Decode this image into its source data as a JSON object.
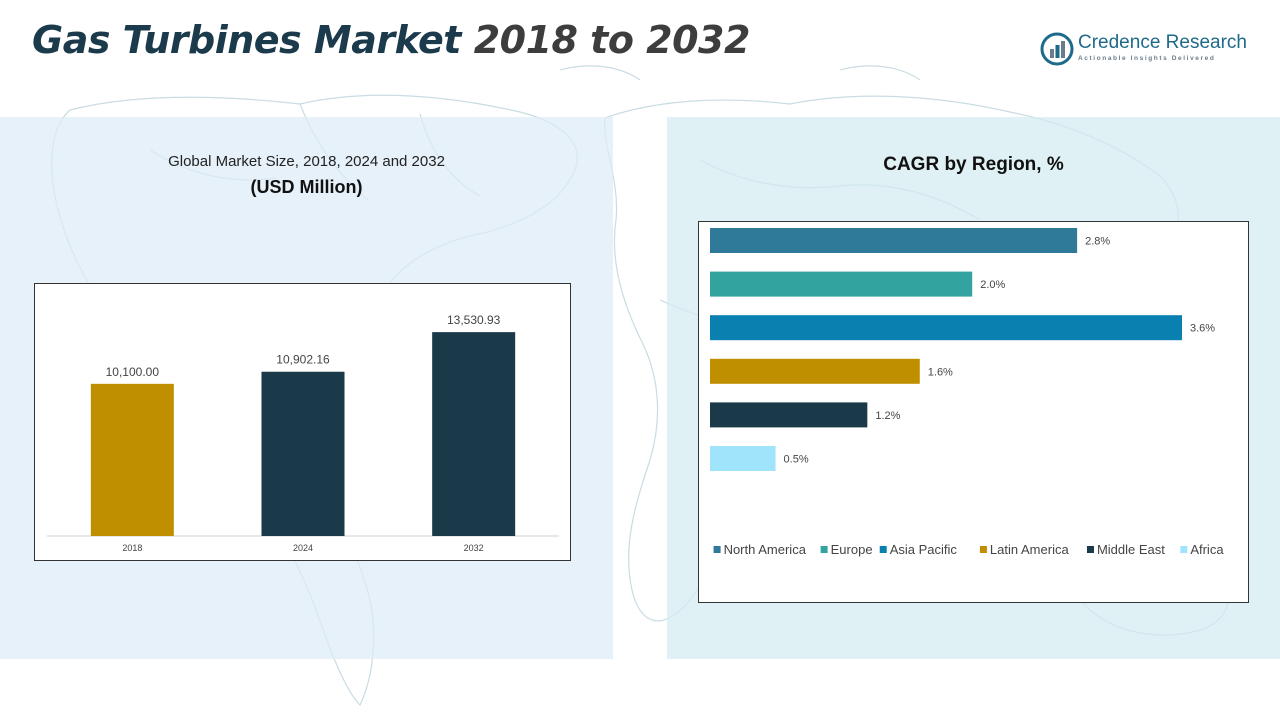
{
  "header": {
    "title_part1": "Gas Turbines Market",
    "title_part2": "2018 to 2032",
    "logo_name": "Credence Research",
    "logo_tagline": "Actionable Insights Delivered"
  },
  "left_panel": {
    "subtitle": "Global Market Size, 2018, 2024 and 2032",
    "unit": "(USD Million)"
  },
  "right_panel": {
    "title": "CAGR by Region, %"
  },
  "colors": {
    "title_dark": "#1b3a4b",
    "gold": "#bf8f00",
    "navy": "#1a3a4a",
    "north_america": "#2e7a98",
    "europe": "#33a3a0",
    "asia_pacific": "#0a80b0",
    "latin_america": "#bf8f00",
    "middle_east": "#1a3a4a",
    "africa": "#9fe4fb"
  },
  "chart_data": [
    {
      "type": "bar",
      "categories": [
        "2018",
        "2024",
        "2032"
      ],
      "values": [
        10100.0,
        10902.16,
        13530.93
      ],
      "value_labels": [
        "10,100.00",
        "10,902.16",
        "13,530.93"
      ],
      "bar_colors": [
        "#bf8f00",
        "#1a3a4a",
        "#1a3a4a"
      ],
      "title": "Global Market Size, 2018, 2024 and 2032",
      "ylabel": "(USD Million)",
      "ylim": [
        0,
        15000
      ],
      "grid": false
    },
    {
      "type": "bar",
      "orientation": "horizontal",
      "title": "CAGR by Region, %",
      "series": [
        {
          "name": "North America",
          "value": 2.8,
          "label": "2.8%",
          "color": "#2e7a98"
        },
        {
          "name": "Europe",
          "value": 2.0,
          "label": "2.0%",
          "color": "#33a3a0"
        },
        {
          "name": "Asia Pacific",
          "value": 3.6,
          "label": "3.6%",
          "color": "#0a80b0"
        },
        {
          "name": "Latin America",
          "value": 1.6,
          "label": "1.6%",
          "color": "#bf8f00"
        },
        {
          "name": "Middle East",
          "value": 1.2,
          "label": "1.2%",
          "color": "#1a3a4a"
        },
        {
          "name": "Africa",
          "value": 0.5,
          "label": "0.5%",
          "color": "#9fe4fb"
        }
      ],
      "xlim": [
        0,
        3.6
      ],
      "legend_position": "bottom",
      "grid": false
    }
  ]
}
